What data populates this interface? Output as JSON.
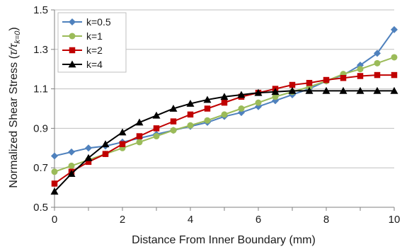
{
  "chart_data": {
    "type": "line",
    "xlabel": "Distance From Inner Boundary (mm)",
    "ylabel_prefix": "Normalized Shear Stress (",
    "ylabel_tau1": "τ/τ",
    "ylabel_sub": "k=0",
    "ylabel_suffix": ")",
    "xlim": [
      0,
      10
    ],
    "ylim": [
      0.5,
      1.5
    ],
    "xticks": [
      0,
      2,
      4,
      6,
      8,
      10
    ],
    "xtick_labels": [
      "0",
      "2",
      "4",
      "6",
      "8",
      "10"
    ],
    "yticks": [
      0.5,
      0.7,
      0.9,
      1.1,
      1.3,
      1.5
    ],
    "ytick_labels": [
      "0.5",
      "0.7",
      "0.9",
      "1.1",
      "1.3",
      "1.5"
    ],
    "grid": "horizontal",
    "legend_position": "top-left",
    "x": [
      0,
      0.5,
      1,
      1.5,
      2,
      2.5,
      3,
      3.5,
      4,
      4.5,
      5,
      5.5,
      6,
      6.5,
      7,
      7.5,
      8,
      8.5,
      9,
      9.5,
      10
    ],
    "series": [
      {
        "name": "k=0.5",
        "color": "#4f81bd",
        "marker": "diamond",
        "values": [
          0.76,
          0.78,
          0.8,
          0.81,
          0.83,
          0.85,
          0.87,
          0.89,
          0.91,
          0.93,
          0.96,
          0.98,
          1.01,
          1.04,
          1.07,
          1.1,
          1.14,
          1.17,
          1.22,
          1.28,
          1.4
        ]
      },
      {
        "name": "k=1",
        "color": "#9bbb59",
        "marker": "circle",
        "values": [
          0.68,
          0.71,
          0.74,
          0.77,
          0.8,
          0.83,
          0.86,
          0.89,
          0.915,
          0.94,
          0.97,
          1.0,
          1.03,
          1.06,
          1.085,
          1.11,
          1.14,
          1.175,
          1.2,
          1.23,
          1.26
        ]
      },
      {
        "name": "k=2",
        "color": "#c00000",
        "marker": "square",
        "values": [
          0.62,
          0.68,
          0.73,
          0.77,
          0.82,
          0.86,
          0.9,
          0.935,
          0.97,
          1.0,
          1.03,
          1.06,
          1.08,
          1.1,
          1.12,
          1.13,
          1.145,
          1.155,
          1.165,
          1.17,
          1.17
        ]
      },
      {
        "name": "k=4",
        "color": "#000000",
        "marker": "triangle",
        "values": [
          0.58,
          0.67,
          0.75,
          0.82,
          0.88,
          0.93,
          0.965,
          1.0,
          1.025,
          1.045,
          1.06,
          1.07,
          1.08,
          1.085,
          1.09,
          1.09,
          1.09,
          1.09,
          1.09,
          1.09,
          1.09
        ]
      }
    ]
  }
}
